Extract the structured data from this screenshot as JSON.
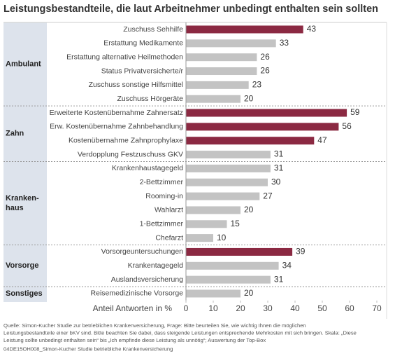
{
  "chart_data": {
    "type": "bar",
    "title": "Leistungsbestandteile, die laut Arbeitnehmer unbedingt enthalten sein sollten",
    "x_label": "Anteil Antworten in %",
    "xlim": [
      0,
      70
    ],
    "xticks": [
      0,
      10,
      20,
      30,
      40,
      50,
      60,
      70
    ],
    "groups": [
      {
        "label": [
          "Ambulant"
        ],
        "categories": [
          "Zuschuss Sehhilfe",
          "Erstattung Medikamente",
          "Erstattung alternative Heilmethoden",
          "Status Privatversicherte/r",
          "Zuschuss sonstige Hilfsmittel",
          "Zuschuss Hörgeräte"
        ],
        "values": [
          43,
          33,
          26,
          26,
          23,
          20
        ],
        "colors": [
          "#8b2942",
          "#c3c3c3",
          "#c3c3c3",
          "#c3c3c3",
          "#c3c3c3",
          "#c3c3c3"
        ]
      },
      {
        "label": [
          "Zahn"
        ],
        "categories": [
          "Erweiterte Kostenübernahme Zahnersatz",
          "Erw. Kostenübernahme Zahnbehandlung",
          "Kostenübernahme Zahnprophylaxe",
          "Verdopplung Festzuschuss GKV"
        ],
        "values": [
          59,
          56,
          47,
          31
        ],
        "colors": [
          "#8b2942",
          "#8b2942",
          "#8b2942",
          "#c3c3c3"
        ]
      },
      {
        "label": [
          "Kranken-",
          "haus"
        ],
        "categories": [
          "Krankenhaustagegeld",
          "2-Bettzimmer",
          "Rooming-in",
          "Wahlarzt",
          "1-Bettzimmer",
          "Chefarzt"
        ],
        "values": [
          31,
          30,
          27,
          20,
          15,
          10
        ],
        "colors": [
          "#c3c3c3",
          "#c3c3c3",
          "#c3c3c3",
          "#c3c3c3",
          "#c3c3c3",
          "#c3c3c3"
        ]
      },
      {
        "label": [
          "Vorsorge"
        ],
        "categories": [
          "Vorsorgeuntersuchungen",
          "Krankentagegeld",
          "Auslandsversicherung"
        ],
        "values": [
          39,
          34,
          31
        ],
        "colors": [
          "#8b2942",
          "#c3c3c3",
          "#c3c3c3"
        ]
      },
      {
        "label": [
          "Sonstiges"
        ],
        "categories": [
          "Reisemedizinische Vorsorge"
        ],
        "values": [
          20
        ],
        "colors": [
          "#c3c3c3"
        ]
      }
    ],
    "footnote": [
      "Quelle: Simon-Kucher Studie zur betrieblichen Krankenversicherung, Frage: Bitte beurteilen Sie, wie wichtig Ihnen die möglichen",
      "Leistungsbestandteile einer bKV sind. Bitte beachten Sie dabei, dass steigende Leistungen entsprechende Mehrkosten mit sich bringen. Skala: „Diese",
      "Leistung sollte unbedingt enthalten sein“ bis „Ich empfinde diese Leistung als unnötig“; Auswertung der Top-Box",
      "04DE15OH008_Simon-Kucher Studie betriebliche Krankenversicherung"
    ]
  }
}
